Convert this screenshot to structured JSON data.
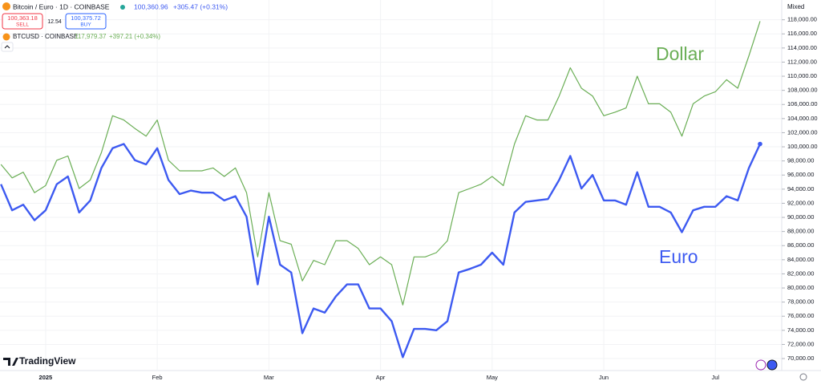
{
  "header": {
    "symbol": "Bitcoin / Euro · 1D · COINBASE",
    "price": "100,360.96",
    "change": "+305.47 (+0.31%)",
    "sell_price": "100,363.18",
    "sell": "SELL",
    "spread": "12.54",
    "buy_price": "100,375.72",
    "buy": "BUY",
    "compare_symbol": "BTCUSD · COINBASE",
    "compare_price": "117,979.37",
    "compare_change": "+397.21 (+0.34%)",
    "scale_mode": "Mixed",
    "brand": "TradingView"
  },
  "chart_data": {
    "type": "line",
    "annotations": [
      "Dollar",
      "Euro"
    ],
    "categories": [
      null,
      null,
      null,
      null,
      "2025",
      null,
      null,
      null,
      null,
      null,
      null,
      null,
      null,
      null,
      "Feb",
      null,
      null,
      null,
      null,
      null,
      null,
      null,
      null,
      null,
      "Mar",
      null,
      null,
      null,
      null,
      null,
      null,
      null,
      null,
      null,
      "Apr",
      null,
      null,
      null,
      null,
      null,
      null,
      null,
      null,
      null,
      "May",
      null,
      null,
      null,
      null,
      null,
      null,
      null,
      null,
      null,
      "Jun",
      null,
      null,
      null,
      null,
      null,
      null,
      null,
      null,
      null,
      "Jul",
      null,
      null,
      null,
      null
    ],
    "series": [
      {
        "name": "BTCUSD",
        "color": "#6aae55",
        "values": [
          97500,
          95600,
          96400,
          93500,
          94500,
          98100,
          98700,
          94100,
          95300,
          99200,
          104400,
          103800,
          102600,
          101500,
          103800,
          98100,
          96600,
          96600,
          96600,
          97000,
          95800,
          97000,
          93500,
          84400,
          93500,
          86700,
          86200,
          81000,
          83900,
          83300,
          86700,
          86700,
          85600,
          83300,
          84400,
          83300,
          77600,
          84400,
          84400,
          85000,
          86700,
          93500,
          94100,
          94700,
          95800,
          94500,
          100400,
          104400,
          103800,
          103800,
          107200,
          111200,
          108300,
          107200,
          104400,
          104900,
          105500,
          110000,
          106100,
          106100,
          104900,
          101500,
          106100,
          107200,
          107800,
          109500,
          108300,
          112900,
          117800
        ]
      },
      {
        "name": "BTCEUR",
        "color": "#3d5af1",
        "values": [
          94700,
          91000,
          91800,
          89600,
          91000,
          94700,
          95800,
          90700,
          92400,
          97000,
          99800,
          100400,
          98100,
          97500,
          99800,
          95300,
          93300,
          93800,
          93500,
          93500,
          92400,
          93000,
          90100,
          80500,
          90100,
          83300,
          82200,
          73600,
          77100,
          76500,
          78800,
          80500,
          80500,
          77100,
          77100,
          75300,
          70200,
          74200,
          74200,
          74000,
          75300,
          82200,
          82700,
          83300,
          85000,
          83300,
          90700,
          92200,
          92400,
          92600,
          95300,
          98700,
          94100,
          96000,
          92400,
          92400,
          91800,
          96400,
          91500,
          91500,
          90700,
          87900,
          91000,
          91500,
          91500,
          93000,
          92400,
          97000,
          100400
        ]
      }
    ],
    "ylim": [
      68300,
      120800
    ],
    "yticks": [
      {
        "value": 70000,
        "label": "70,000.00"
      },
      {
        "value": 72000,
        "label": "72,000.00"
      },
      {
        "value": 74000,
        "label": "74,000.00"
      },
      {
        "value": 76000,
        "label": "76,000.00"
      },
      {
        "value": 78000,
        "label": "78,000.00"
      },
      {
        "value": 80000,
        "label": "80,000.00"
      },
      {
        "value": 82000,
        "label": "82,000.00"
      },
      {
        "value": 84000,
        "label": "84,000.00"
      },
      {
        "value": 86000,
        "label": "86,000.00"
      },
      {
        "value": 88000,
        "label": "88,000.00"
      },
      {
        "value": 90000,
        "label": "90,000.00"
      },
      {
        "value": 92000,
        "label": "92,000.00"
      },
      {
        "value": 94000,
        "label": "94,000.00"
      },
      {
        "value": 96000,
        "label": "96,000.00"
      },
      {
        "value": 98000,
        "label": "98,000.00"
      },
      {
        "value": 100000,
        "label": "100,000.00"
      },
      {
        "value": 102000,
        "label": "102,000.00"
      },
      {
        "value": 104000,
        "label": "104,000.00"
      },
      {
        "value": 106000,
        "label": "106,000.00"
      },
      {
        "value": 108000,
        "label": "108,000.00"
      },
      {
        "value": 110000,
        "label": "110,000.00"
      },
      {
        "value": 112000,
        "label": "112,000.00"
      },
      {
        "value": 114000,
        "label": "114,000.00"
      },
      {
        "value": 116000,
        "label": "116,000.00"
      },
      {
        "value": 118000,
        "label": "118,000.00"
      }
    ],
    "grid": true
  }
}
